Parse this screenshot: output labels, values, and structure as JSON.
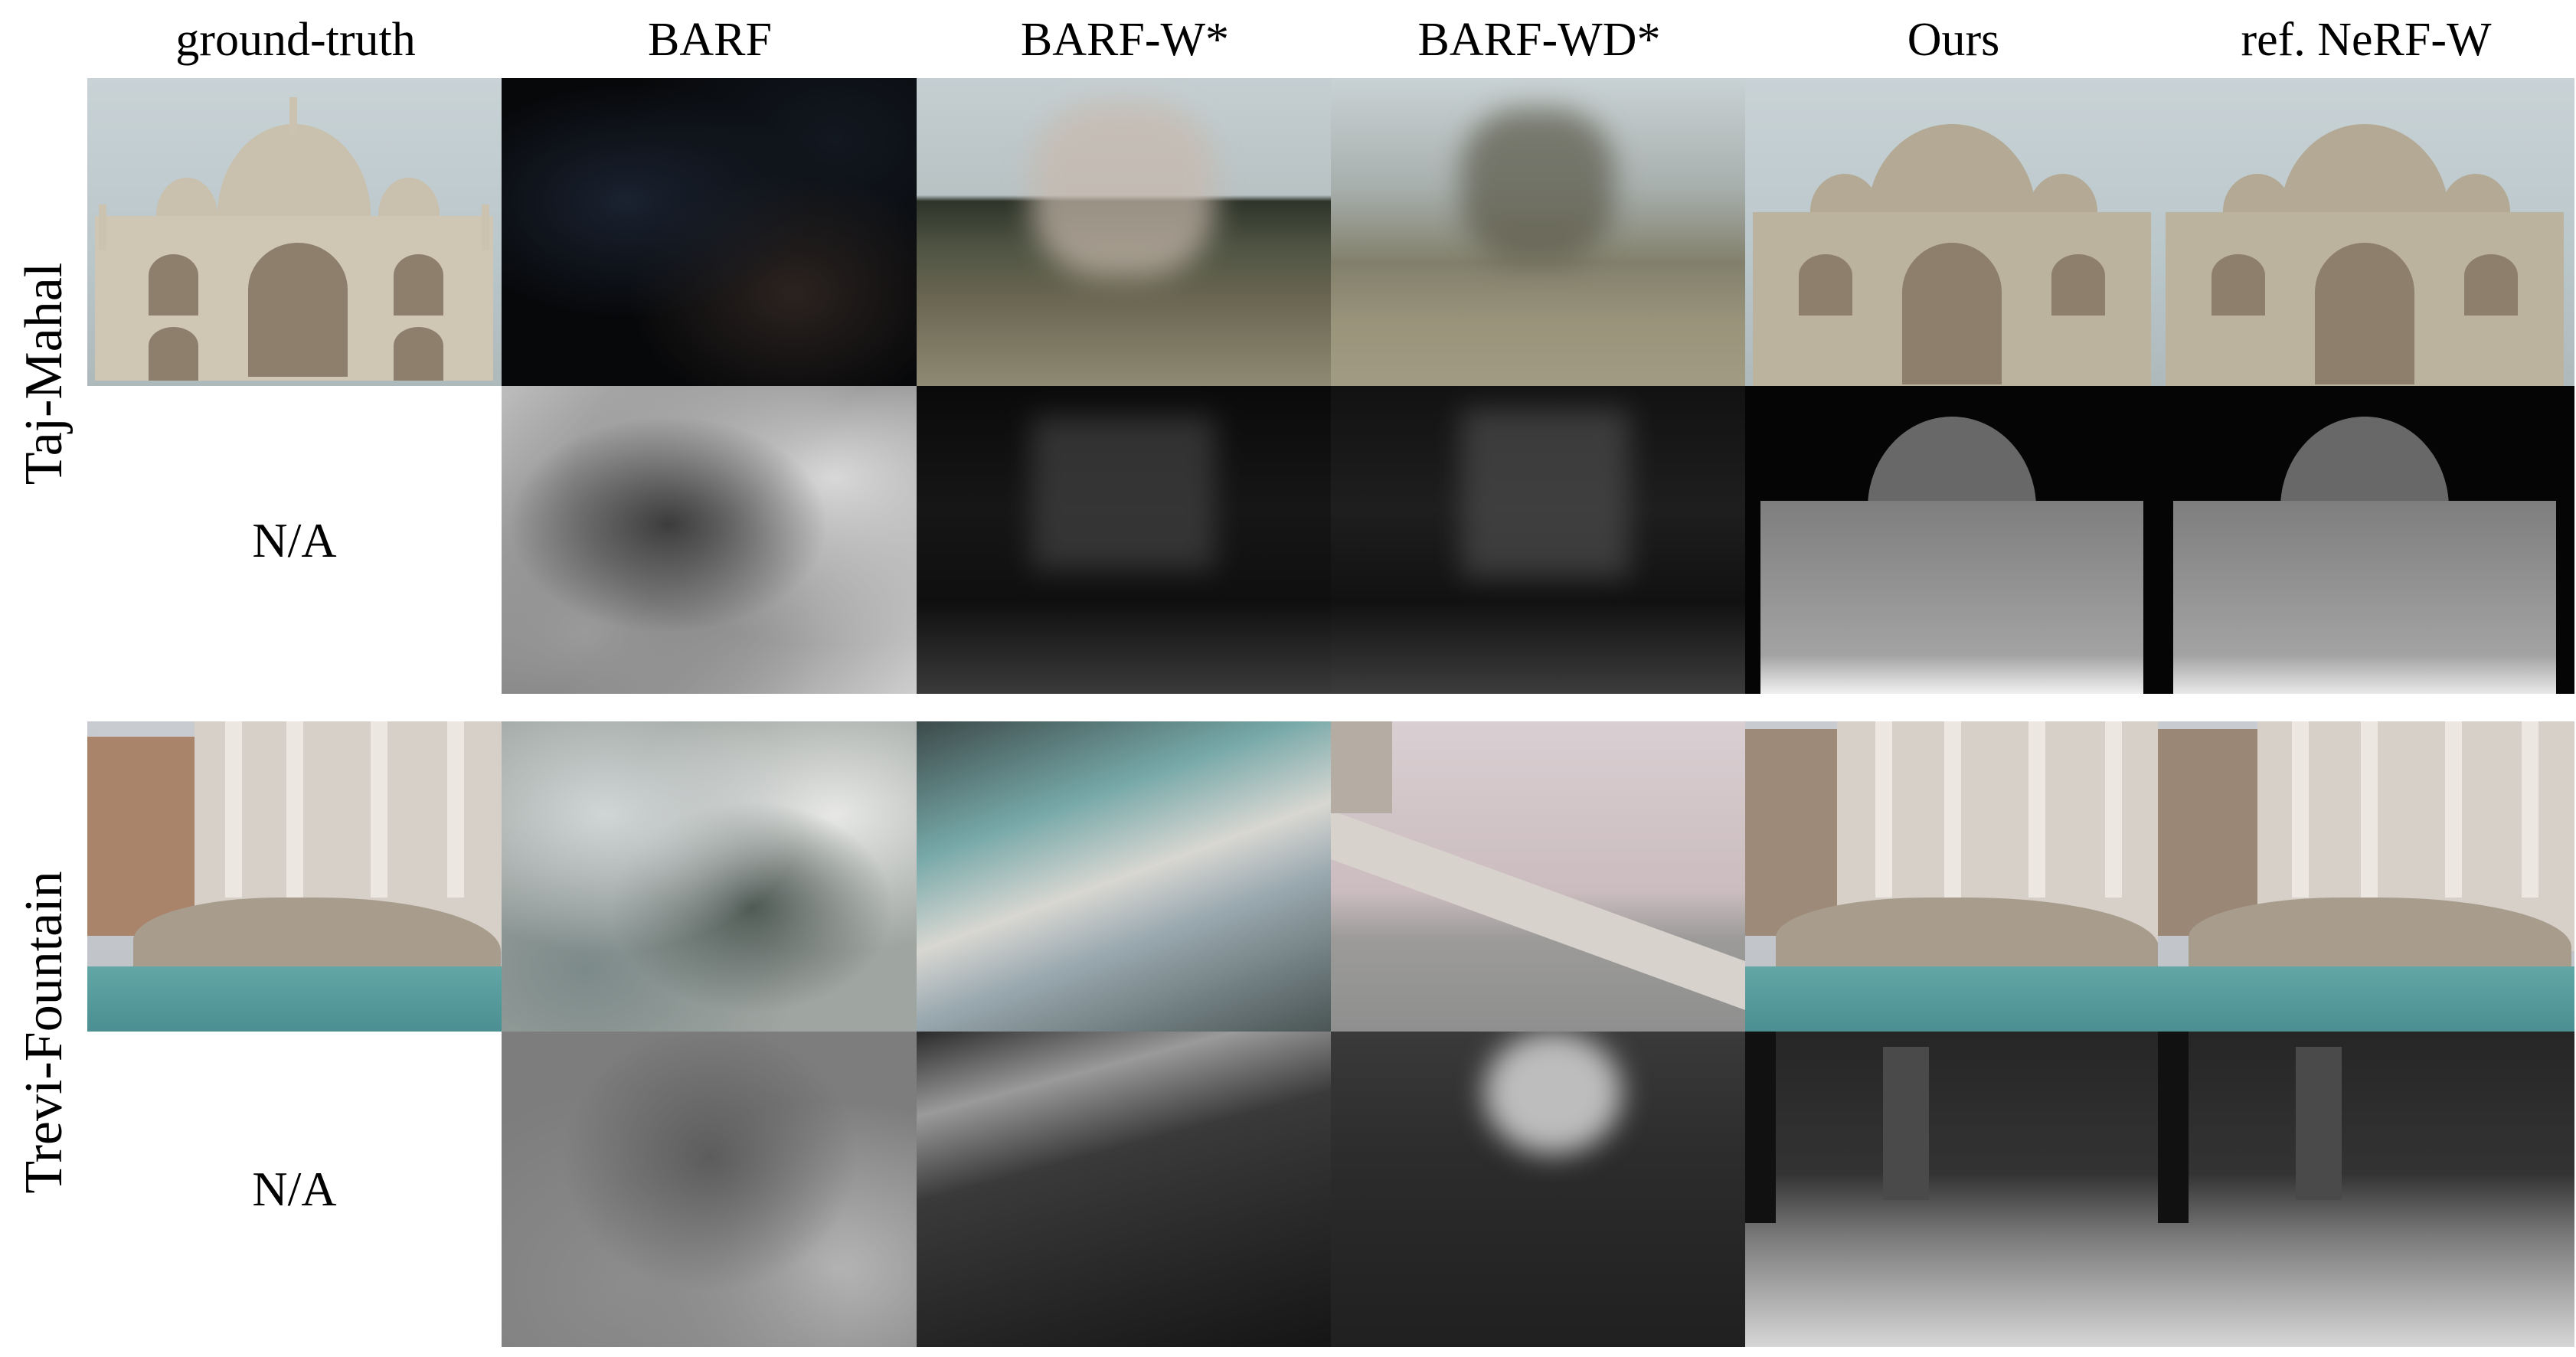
{
  "columns": [
    "ground-truth",
    "BARF",
    "BARF-W*",
    "BARF-WD*",
    "Ours",
    "ref. NeRF-W"
  ],
  "rows": [
    {
      "label": "Taj-Mahal",
      "na_text": "N/A"
    },
    {
      "label": "Trevi-Fountain",
      "na_text": "N/A"
    }
  ]
}
